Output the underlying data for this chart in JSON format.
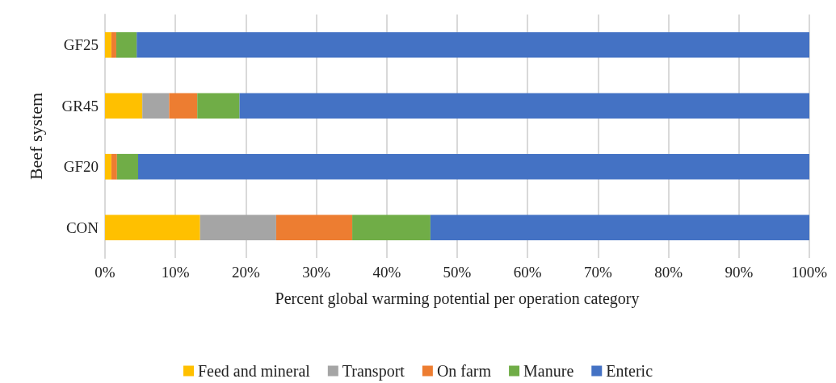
{
  "chart_data": {
    "type": "bar",
    "orientation": "horizontal",
    "stacked": true,
    "xlabel": "Percent global warming potential per operation category",
    "ylabel": "Beef system",
    "categories": [
      "GF25",
      "GR45",
      "GF20",
      "CON"
    ],
    "series": [
      {
        "name": "Feed and mineral",
        "color": "#ffc000",
        "values": [
          0.9,
          5.3,
          0.9,
          13.5
        ]
      },
      {
        "name": "Transport",
        "color": "#a5a5a5",
        "values": [
          0,
          3.8,
          0,
          10.8
        ]
      },
      {
        "name": "On farm",
        "color": "#ed7d31",
        "values": [
          0.7,
          4.0,
          0.8,
          10.8
        ]
      },
      {
        "name": "Manure",
        "color": "#70ad47",
        "values": [
          2.9,
          6.0,
          3.0,
          11.1
        ]
      },
      {
        "name": "Enteric",
        "color": "#4472c4",
        "values": [
          95.5,
          80.9,
          95.3,
          53.8
        ]
      }
    ],
    "xlim": [
      0,
      100
    ],
    "xticks": [
      {
        "value": 0,
        "label": "0%"
      },
      {
        "value": 10,
        "label": "10%"
      },
      {
        "value": 20,
        "label": "20%"
      },
      {
        "value": 30,
        "label": "30%"
      },
      {
        "value": 40,
        "label": "40%"
      },
      {
        "value": 50,
        "label": "50%"
      },
      {
        "value": 60,
        "label": "60%"
      },
      {
        "value": 70,
        "label": "70%"
      },
      {
        "value": 80,
        "label": "80%"
      },
      {
        "value": 90,
        "label": "90%"
      },
      {
        "value": 100,
        "label": "100%"
      }
    ],
    "grid": "x",
    "legend": "bottom"
  }
}
